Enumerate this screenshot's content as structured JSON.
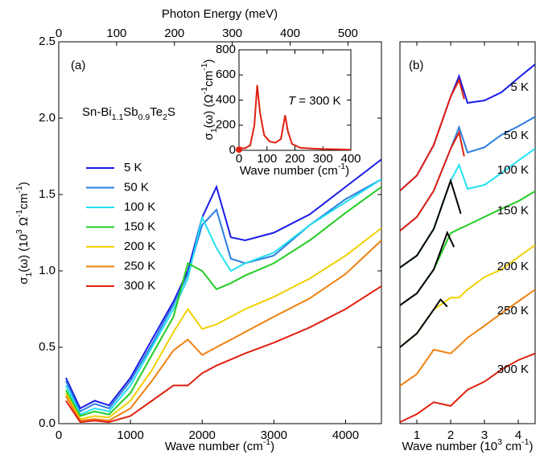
{
  "chart_data": [
    {
      "type": "line",
      "panel": "(a)",
      "xlabel": [
        {
          "text": "Wave number (cm"
        },
        {
          "sup": "-1"
        },
        {
          "text": ")"
        }
      ],
      "ylabel": [
        {
          "text": "σ"
        },
        {
          "sub": "1"
        },
        {
          "text": "(ω) (10"
        },
        {
          "sup": "3"
        },
        {
          "text": " Ω"
        },
        {
          "sup": "-1"
        },
        {
          "text": "cm"
        },
        {
          "sup": "-1"
        },
        {
          "text": ")"
        }
      ],
      "top_xlabel": "Photon Energy (meV)",
      "compound": [
        {
          "text": "Sn-Bi"
        },
        {
          "sub": "1.1"
        },
        {
          "text": "Sb"
        },
        {
          "sub": "0.9"
        },
        {
          "text": "Te"
        },
        {
          "sub": "2"
        },
        {
          "text": "S"
        }
      ],
      "xlim": [
        0,
        4500
      ],
      "xticks": [
        0,
        1000,
        2000,
        3000,
        4000
      ],
      "top_xlim": [
        0,
        557.9
      ],
      "top_xticks": [
        0,
        100,
        200,
        300,
        400,
        500
      ],
      "ylim": [
        0,
        2.5
      ],
      "yticks": [
        {
          "value": 0,
          "label": "0.0"
        },
        0.5,
        {
          "value": 1,
          "label": "1.0"
        },
        1.5,
        {
          "value": 2,
          "label": "2.0"
        },
        2.5
      ],
      "x": [
        100,
        300,
        500,
        700,
        1000,
        1300,
        1600,
        1800,
        2000,
        2200,
        2400,
        2600,
        3000,
        3500,
        4000,
        4500
      ],
      "series": [
        {
          "name": "5 K",
          "color": "#1a1ae6",
          "values": [
            0.3,
            0.1,
            0.15,
            0.12,
            0.3,
            0.55,
            0.8,
            1.0,
            1.35,
            1.55,
            1.22,
            1.2,
            1.25,
            1.37,
            1.55,
            1.73
          ]
        },
        {
          "name": "50 K",
          "color": "#2a7de1",
          "values": [
            0.28,
            0.08,
            0.13,
            0.1,
            0.28,
            0.52,
            0.78,
            0.98,
            1.3,
            1.4,
            1.08,
            1.05,
            1.1,
            1.3,
            1.47,
            1.6
          ]
        },
        {
          "name": "100 K",
          "color": "#22e0f0",
          "values": [
            0.25,
            0.06,
            0.1,
            0.08,
            0.25,
            0.5,
            0.75,
            0.95,
            1.35,
            1.15,
            1.0,
            1.05,
            1.12,
            1.3,
            1.45,
            1.6
          ]
        },
        {
          "name": "150 K",
          "color": "#22cc22",
          "values": [
            0.22,
            0.05,
            0.08,
            0.06,
            0.2,
            0.45,
            0.7,
            1.05,
            1.0,
            0.88,
            0.92,
            0.97,
            1.05,
            1.2,
            1.38,
            1.55
          ]
        },
        {
          "name": "200 K",
          "color": "#f0d000",
          "values": [
            0.2,
            0.03,
            0.05,
            0.04,
            0.15,
            0.35,
            0.6,
            0.75,
            0.62,
            0.65,
            0.7,
            0.75,
            0.83,
            0.95,
            1.1,
            1.28
          ]
        },
        {
          "name": "250 K",
          "color": "#f08010",
          "values": [
            0.18,
            0.02,
            0.03,
            0.02,
            0.1,
            0.28,
            0.48,
            0.55,
            0.45,
            0.5,
            0.55,
            0.6,
            0.7,
            0.82,
            0.98,
            1.2
          ]
        },
        {
          "name": "300 K",
          "color": "#e02010",
          "values": [
            0.15,
            0.01,
            0.02,
            0.01,
            0.05,
            0.15,
            0.25,
            0.25,
            0.33,
            0.38,
            0.42,
            0.46,
            0.53,
            0.63,
            0.75,
            0.9
          ]
        }
      ]
    },
    {
      "type": "line",
      "xlabel": [
        {
          "text": "Wave number (cm"
        },
        {
          "sup": "-1"
        },
        {
          "text": ")"
        }
      ],
      "ylabel": [
        {
          "text": "σ"
        },
        {
          "sub": "1"
        },
        {
          "text": "(ω) (Ω"
        },
        {
          "sup": "-1"
        },
        {
          "text": "cm"
        },
        {
          "sup": "-1"
        },
        {
          "text": ")"
        }
      ],
      "annotation": [
        {
          "italic": "T"
        },
        {
          "text": " = 300 K"
        }
      ],
      "xlim": [
        0,
        400
      ],
      "xticks": [
        0,
        100,
        200,
        300,
        400
      ],
      "ylim": [
        0,
        800
      ],
      "yticks": [
        0,
        200,
        400,
        600,
        800
      ],
      "x": [
        5,
        20,
        40,
        55,
        65,
        75,
        90,
        110,
        130,
        150,
        165,
        175,
        190,
        220,
        260,
        300,
        350,
        400
      ],
      "series": [
        {
          "color": "#e02010",
          "values": [
            20,
            15,
            40,
            200,
            520,
            300,
            120,
            70,
            60,
            90,
            280,
            150,
            50,
            20,
            15,
            10,
            8,
            5
          ]
        }
      ],
      "dc_point": {
        "x": 0,
        "value": 5,
        "color": "#e02010"
      }
    },
    {
      "type": "line",
      "panel": "(b)",
      "xlabel": [
        {
          "text": "Wave number (10"
        },
        {
          "sup": "3"
        },
        {
          "text": " cm"
        },
        {
          "sup": "-1"
        },
        {
          "text": ")"
        }
      ],
      "xlim": [
        0.5,
        4.5
      ],
      "xticks": [
        1,
        2,
        3,
        4
      ],
      "ylim": [
        0,
        8
      ],
      "x": [
        0.5,
        1,
        1.5,
        2,
        2.25,
        2.5,
        3,
        3.5,
        4,
        4.5
      ],
      "series": [
        {
          "name": "5 K",
          "color": "#1a1ae6",
          "values": [
            4.88,
            5.2,
            5.84,
            6.85,
            7.28,
            6.72,
            6.77,
            6.94,
            7.24,
            7.53
          ]
        },
        {
          "name": "50 K",
          "color": "#2a7de1",
          "values": [
            4.04,
            4.33,
            4.88,
            5.76,
            6.21,
            5.68,
            5.79,
            6.05,
            6.23,
            6.43
          ]
        },
        {
          "name": "100 K",
          "color": "#22e0f0",
          "values": [
            3.27,
            3.52,
            4.08,
            5.09,
            5.42,
            4.92,
            5.0,
            5.25,
            5.51,
            5.76
          ]
        },
        {
          "name": "150 K",
          "color": "#22cc22",
          "values": [
            2.48,
            2.73,
            3.23,
            3.99,
            4.08,
            4.16,
            4.33,
            4.5,
            4.66,
            4.87
          ]
        },
        {
          "name": "200 K",
          "color": "#f0d000",
          "values": [
            1.6,
            1.89,
            2.39,
            2.64,
            2.64,
            2.81,
            3.07,
            3.23,
            3.49,
            3.74
          ]
        },
        {
          "name": "250 K",
          "color": "#f08010",
          "values": [
            0.79,
            1.04,
            1.55,
            1.47,
            1.63,
            1.8,
            2.05,
            2.31,
            2.56,
            2.81
          ]
        },
        {
          "name": "300 K",
          "color": "#e02010",
          "values": [
            0.03,
            0.2,
            0.45,
            0.37,
            0.54,
            0.71,
            0.88,
            1.13,
            1.33,
            1.47
          ]
        }
      ],
      "fits": [
        {
          "color": "#e02010",
          "x": [
            0.5,
            1,
            1.5,
            2,
            2.25,
            2.4
          ],
          "values": [
            4.88,
            5.2,
            5.84,
            6.85,
            7.2,
            6.8
          ]
        },
        {
          "color": "#e02010",
          "x": [
            0.5,
            1,
            1.5,
            2,
            2.25,
            2.4
          ],
          "values": [
            4.04,
            4.33,
            4.88,
            5.76,
            6.1,
            5.6
          ]
        },
        {
          "color": "#000000",
          "x": [
            0.5,
            1,
            1.5,
            2,
            2.3
          ],
          "values": [
            3.27,
            3.52,
            4.08,
            5.09,
            4.4
          ]
        },
        {
          "color": "#000000",
          "x": [
            0.5,
            1,
            1.5,
            1.9,
            2.1
          ],
          "values": [
            2.48,
            2.73,
            3.23,
            4.0,
            3.7
          ]
        },
        {
          "color": "#000000",
          "x": [
            0.5,
            1,
            1.5,
            1.7,
            1.9
          ],
          "values": [
            1.6,
            1.89,
            2.39,
            2.6,
            2.45
          ]
        }
      ]
    }
  ]
}
